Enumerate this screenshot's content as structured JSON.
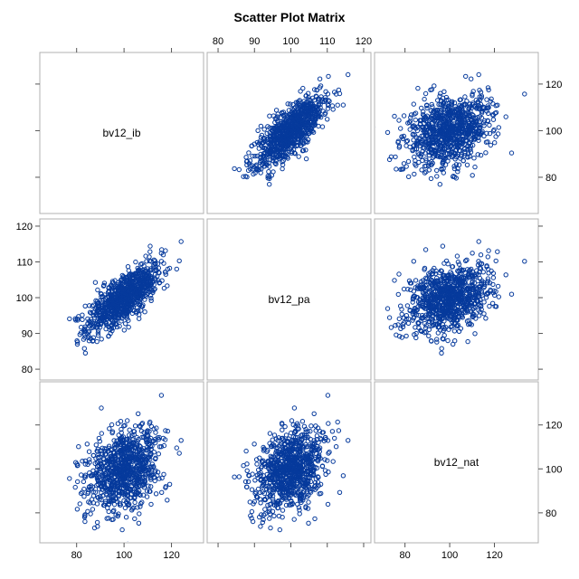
{
  "title": "Scatter Plot Matrix",
  "colors": {
    "marker": "#063a9c",
    "frame": "#b0b0b0"
  },
  "chart_data": {
    "type": "scatter",
    "title": "Scatter Plot Matrix",
    "variables": [
      "bv12_ib",
      "bv12_pa",
      "bv12_nat"
    ],
    "axes": {
      "bv12_ib": {
        "range": [
          66,
          132
        ],
        "ticks": [
          80,
          100,
          120
        ]
      },
      "bv12_pa": {
        "range": [
          78,
          121
        ],
        "ticks": [
          80,
          90,
          100,
          110,
          120
        ]
      },
      "bv12_nat": {
        "range": [
          68,
          138
        ],
        "ticks": [
          80,
          100,
          120
        ]
      }
    },
    "point_count_per_panel": 900,
    "distribution": {
      "bv12_ib": {
        "mean": 100,
        "sd": 8
      },
      "bv12_pa": {
        "mean": 100,
        "sd": 5
      },
      "bv12_nat": {
        "mean": 100,
        "sd": 9
      },
      "correlations": {
        "ib_pa": 0.75,
        "ib_nat": 0.3,
        "pa_nat": 0.3
      }
    },
    "marker": "open-circle",
    "grid": false,
    "legend": "none"
  }
}
